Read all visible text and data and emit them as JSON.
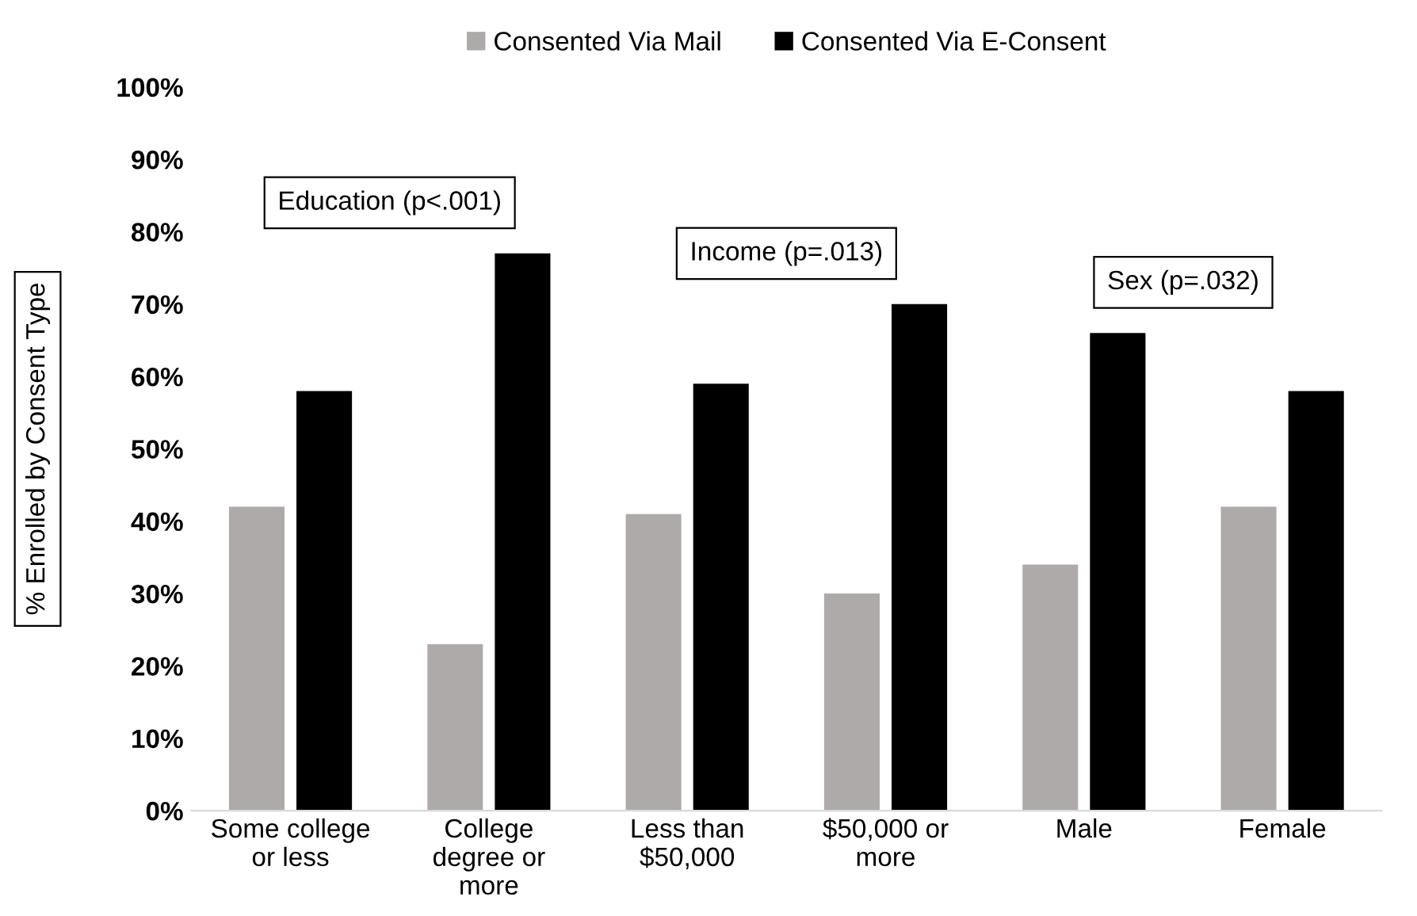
{
  "chart_data": {
    "type": "bar",
    "ylabel": "% Enrolled by Consent Type",
    "categories": [
      "Some college\nor less",
      "College\ndegree or\nmore",
      "Less than\n$50,000",
      "$50,000 or\nmore",
      "Male",
      "Female"
    ],
    "series": [
      {
        "name": "Consented Via Mail",
        "color": "#aeaaaa",
        "values": [
          42,
          23,
          41,
          30,
          34,
          42
        ]
      },
      {
        "name": "Consented Via E-Consent",
        "color": "#000000",
        "values": [
          58,
          77,
          59,
          70,
          66,
          58
        ]
      }
    ],
    "ylim": [
      0,
      100
    ],
    "yticks": [
      {
        "value": 0,
        "label": "0%"
      },
      {
        "value": 10,
        "label": "10%"
      },
      {
        "value": 20,
        "label": "20%"
      },
      {
        "value": 30,
        "label": "30%"
      },
      {
        "value": 40,
        "label": "40%"
      },
      {
        "value": 50,
        "label": "50%"
      },
      {
        "value": 60,
        "label": "60%"
      },
      {
        "value": 70,
        "label": "70%"
      },
      {
        "value": 80,
        "label": "80%"
      },
      {
        "value": 90,
        "label": "90%"
      },
      {
        "value": 100,
        "label": "100%"
      }
    ],
    "annotations": [
      "Education (p<.001)",
      "Income (p=.013)",
      "Sex (p=.032)"
    ],
    "legend": "top",
    "grid": false
  }
}
